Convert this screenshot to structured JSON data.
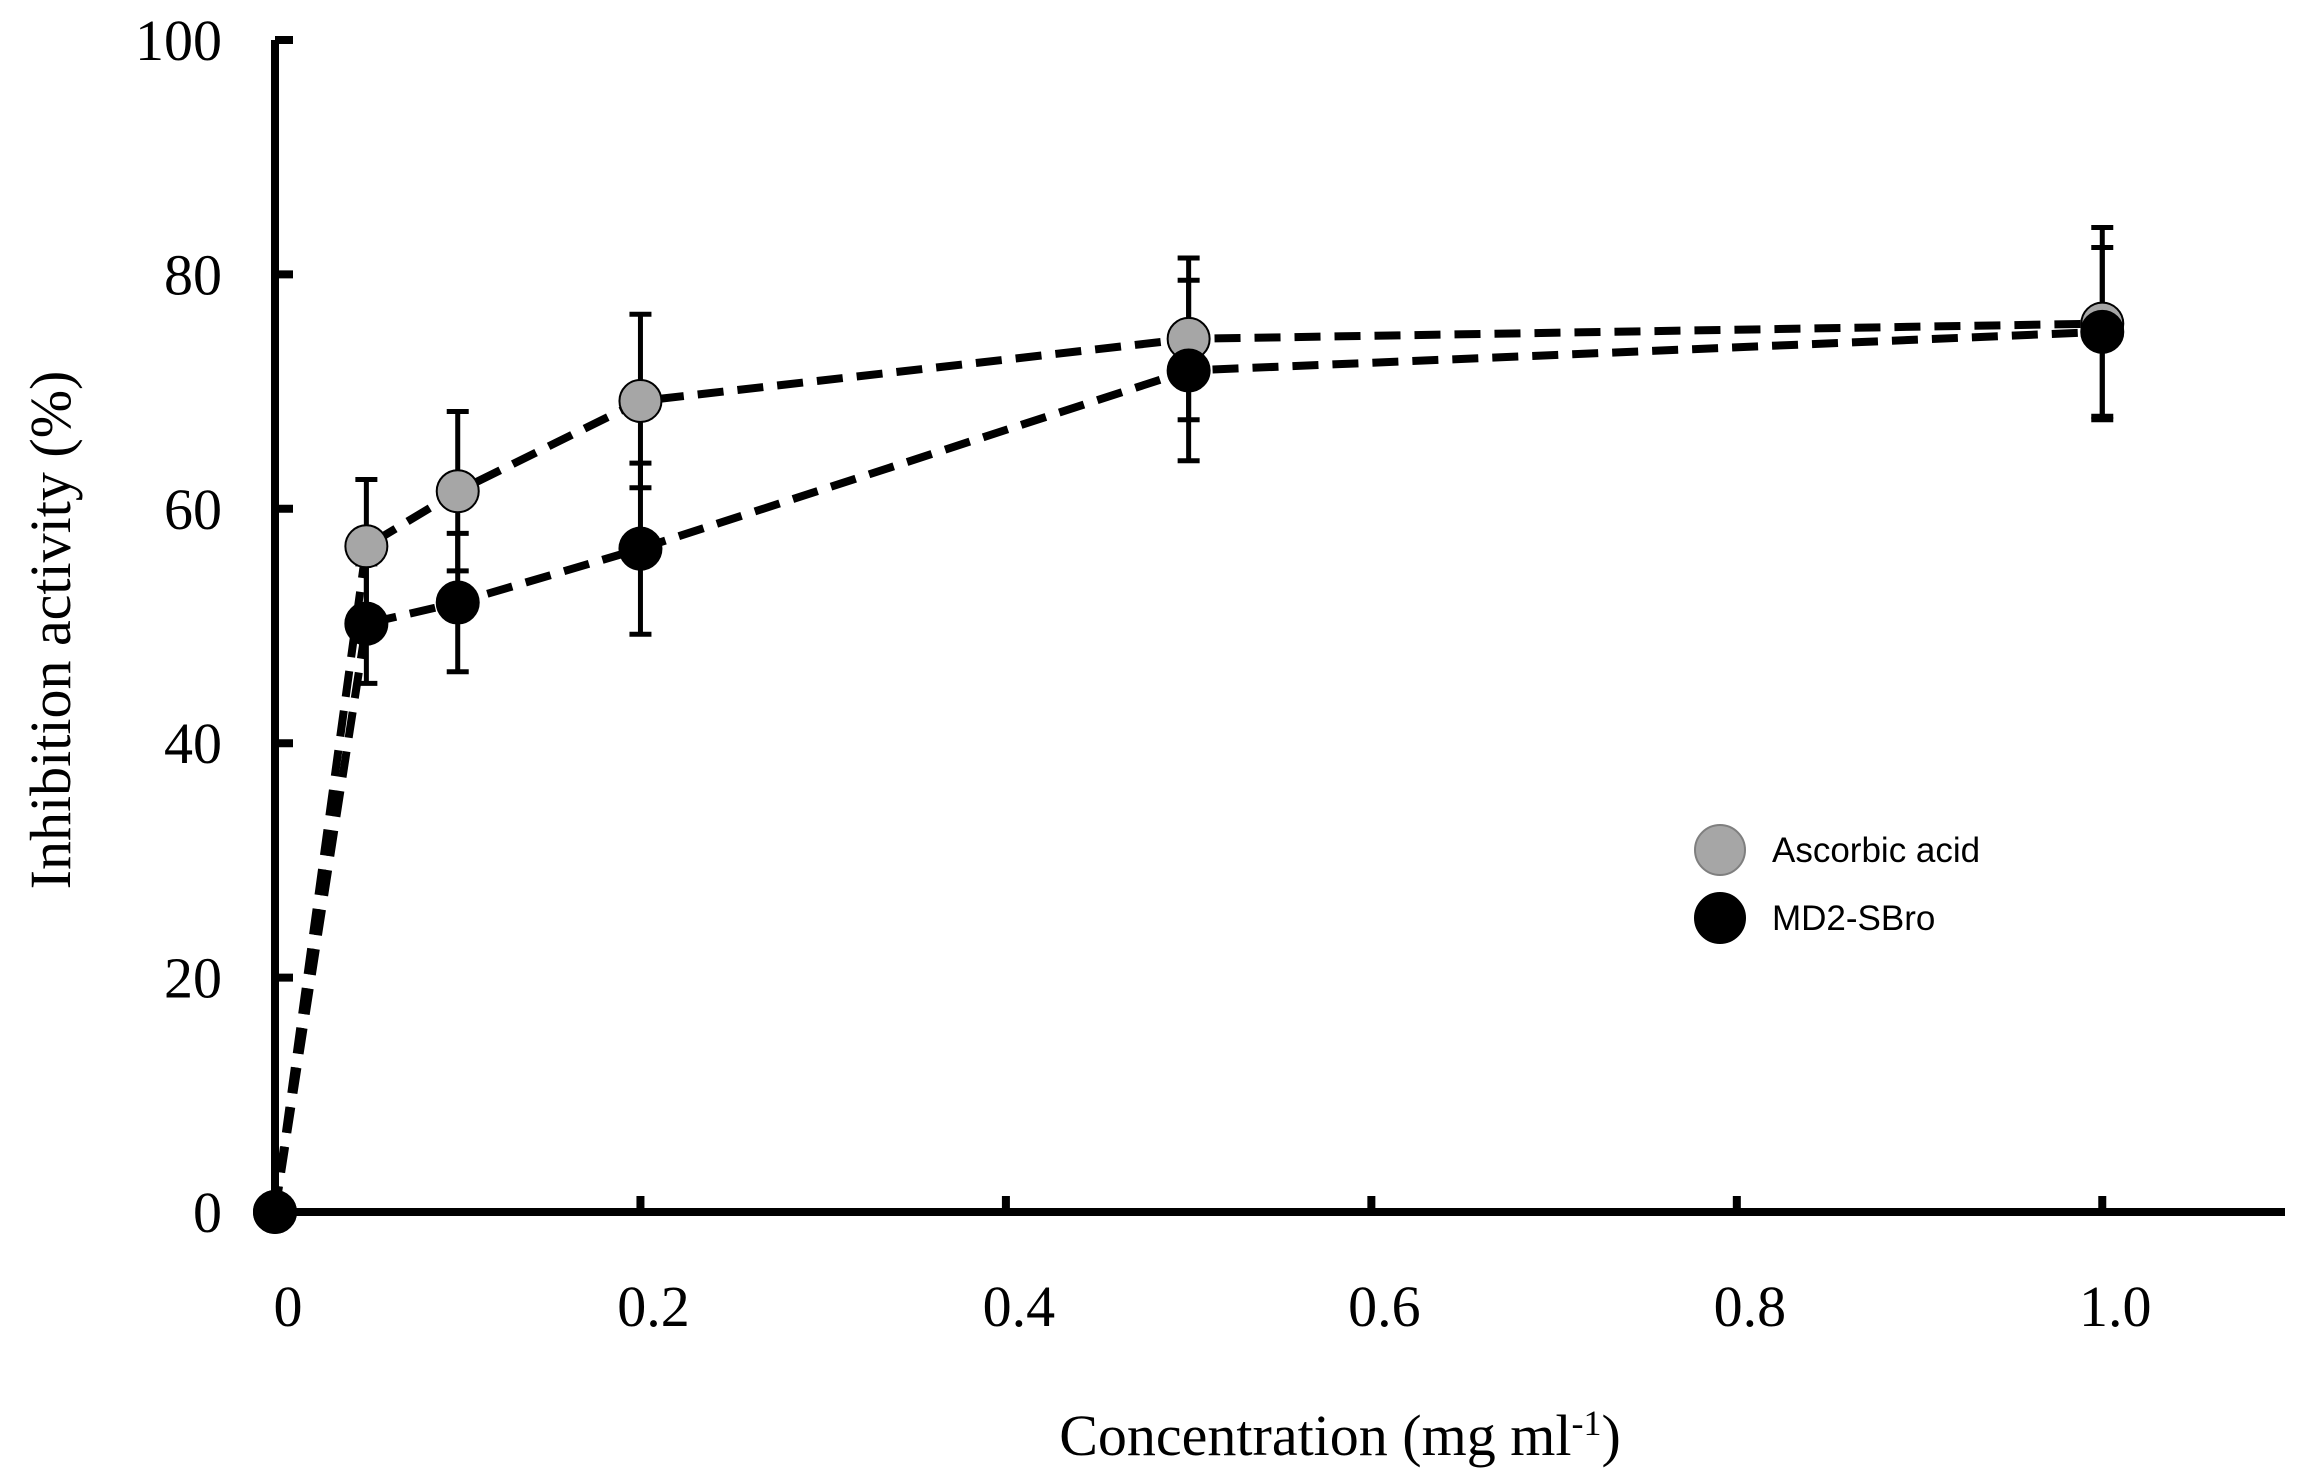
{
  "chart_data": {
    "type": "line",
    "title": "",
    "xlabel": "Concentration  (mg ml",
    "xlabel_sup": "-1",
    "xlabel_end": ")",
    "ylabel": "Inhibition activity (%)",
    "xlim": [
      0,
      1.1
    ],
    "ylim": [
      0,
      100
    ],
    "x_ticks": [
      0,
      0.2,
      0.4,
      0.6,
      0.8,
      1.0
    ],
    "x_tick_labels": [
      "0",
      "0.2",
      "0.4",
      "0.6",
      "0.8",
      "1.0"
    ],
    "y_ticks": [
      0,
      20,
      40,
      60,
      80,
      100
    ],
    "y_tick_labels": [
      "0",
      "20",
      "40",
      "60",
      "80",
      "100"
    ],
    "grid": false,
    "legend_position": "right",
    "x": [
      0,
      0.05,
      0.1,
      0.2,
      0.5,
      1.0
    ],
    "series": [
      {
        "name": "Ascorbic acid",
        "color": "#a6a6a6",
        "values": [
          0,
          56.8,
          61.5,
          69.2,
          74.5,
          75.8
        ],
        "errors": [
          0,
          5.7,
          6.8,
          7.4,
          6.9,
          8.2
        ],
        "line_style": "dashed"
      },
      {
        "name": "MD2-SBro",
        "color": "#000000",
        "values": [
          0,
          50.2,
          52,
          56.6,
          71.8,
          75.1
        ],
        "errors": [
          0,
          5.1,
          5.9,
          7.3,
          7.7,
          7.2
        ],
        "line_style": "dashed"
      }
    ]
  }
}
